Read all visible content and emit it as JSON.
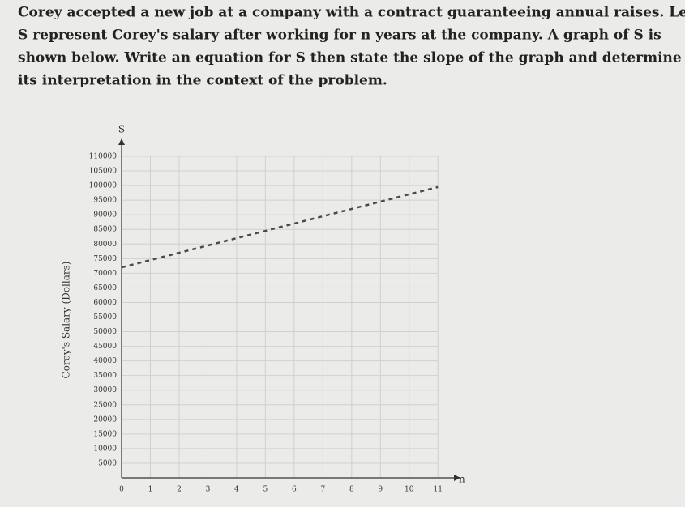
{
  "problem_text": [
    "Corey accepted a new job at a company with a contract guaranteeing annual raises. Let",
    "S represent Corey's salary after working for n years at the company. A graph of S is",
    "shown below. Write an equation for S then state the slope of the graph and determine",
    "its interpretation in the context of the problem."
  ],
  "chart_data": {
    "type": "line",
    "y_label": "Corey's Salary (Dollars)",
    "y_axis_name": "S",
    "x_axis_name": "n",
    "x": [
      0,
      1,
      2,
      3,
      4,
      5,
      6,
      7,
      8,
      9,
      10,
      11
    ],
    "series": [
      {
        "color": "#4a4a4a",
        "dashed": true,
        "values": [
          72000,
          74500,
          77000,
          79500,
          82000,
          84500,
          87000,
          89500,
          92000,
          94500,
          97000,
          99500
        ]
      }
    ],
    "xlim": [
      0,
      11.5
    ],
    "ylim": [
      0,
      110000
    ],
    "xticks": [
      0,
      1,
      2,
      3,
      4,
      5,
      6,
      7,
      8,
      9,
      10,
      11
    ],
    "yticks": [
      5000,
      10000,
      15000,
      20000,
      25000,
      30000,
      35000,
      40000,
      45000,
      50000,
      55000,
      60000,
      65000,
      70000,
      75000,
      80000,
      85000,
      90000,
      95000,
      100000,
      105000,
      110000
    ],
    "grid": true
  }
}
